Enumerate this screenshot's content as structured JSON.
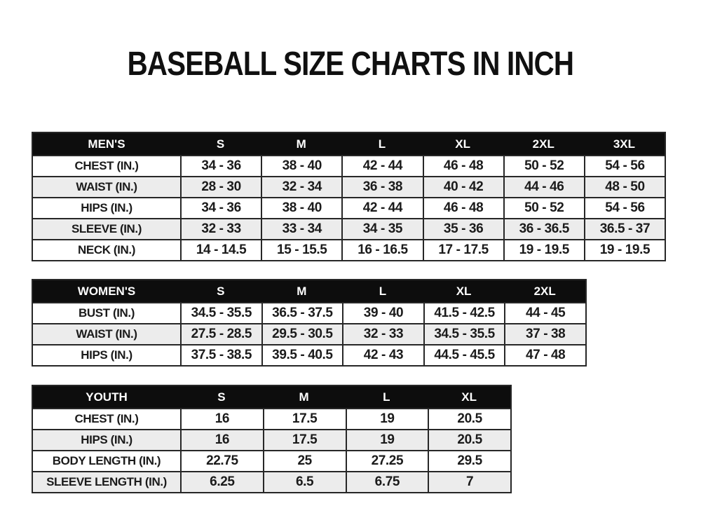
{
  "page": {
    "title": "BASEBALL SIZE CHARTS IN INCH"
  },
  "chart_data": [
    {
      "type": "table",
      "name": "MEN'S",
      "columns": [
        "S",
        "M",
        "L",
        "XL",
        "2XL",
        "3XL"
      ],
      "rows": [
        {
          "label": "CHEST (IN.)",
          "values": [
            "34 - 36",
            "38 - 40",
            "42 - 44",
            "46 - 48",
            "50 - 52",
            "54 - 56"
          ]
        },
        {
          "label": "WAIST (IN.)",
          "values": [
            "28 - 30",
            "32 - 34",
            "36 - 38",
            "40 - 42",
            "44 - 46",
            "48 - 50"
          ]
        },
        {
          "label": "HIPS (IN.)",
          "values": [
            "34 - 36",
            "38 - 40",
            "42 - 44",
            "46 - 48",
            "50 - 52",
            "54 - 56"
          ]
        },
        {
          "label": "SLEEVE (IN.)",
          "values": [
            "32 - 33",
            "33 - 34",
            "34 - 35",
            "35 - 36",
            "36 - 36.5",
            "36.5 - 37"
          ]
        },
        {
          "label": "NECK (IN.)",
          "values": [
            "14 - 14.5",
            "15 - 15.5",
            "16 - 16.5",
            "17 - 17.5",
            "19 - 19.5",
            "19 - 19.5"
          ]
        }
      ]
    },
    {
      "type": "table",
      "name": "WOMEN'S",
      "columns": [
        "S",
        "M",
        "L",
        "XL",
        "2XL"
      ],
      "rows": [
        {
          "label": "BUST (IN.)",
          "values": [
            "34.5 - 35.5",
            "36.5 - 37.5",
            "39 - 40",
            "41.5 - 42.5",
            "44 - 45"
          ]
        },
        {
          "label": "WAIST (IN.)",
          "values": [
            "27.5 - 28.5",
            "29.5 - 30.5",
            "32 - 33",
            "34.5 - 35.5",
            "37 - 38"
          ]
        },
        {
          "label": "HIPS (IN.)",
          "values": [
            "37.5 - 38.5",
            "39.5 - 40.5",
            "42 - 43",
            "44.5 - 45.5",
            "47 - 48"
          ]
        }
      ]
    },
    {
      "type": "table",
      "name": "YOUTH",
      "columns": [
        "S",
        "M",
        "L",
        "XL"
      ],
      "rows": [
        {
          "label": "CHEST (IN.)",
          "values": [
            "16",
            "17.5",
            "19",
            "20.5"
          ]
        },
        {
          "label": "HIPS (IN.)",
          "values": [
            "16",
            "17.5",
            "19",
            "20.5"
          ]
        },
        {
          "label": "BODY LENGTH (IN.)",
          "values": [
            "22.75",
            "25",
            "27.25",
            "29.5"
          ]
        },
        {
          "label": "SLEEVE LENGTH (IN.)",
          "values": [
            "6.25",
            "6.5",
            "6.75",
            "7"
          ]
        }
      ]
    }
  ],
  "colors": {
    "background": "#ffffff",
    "header_bg": "#0d0d0d",
    "header_text": "#ffffff",
    "stripe_bg": "#ececec",
    "border": "#272727",
    "text": "#1b1b1b"
  }
}
